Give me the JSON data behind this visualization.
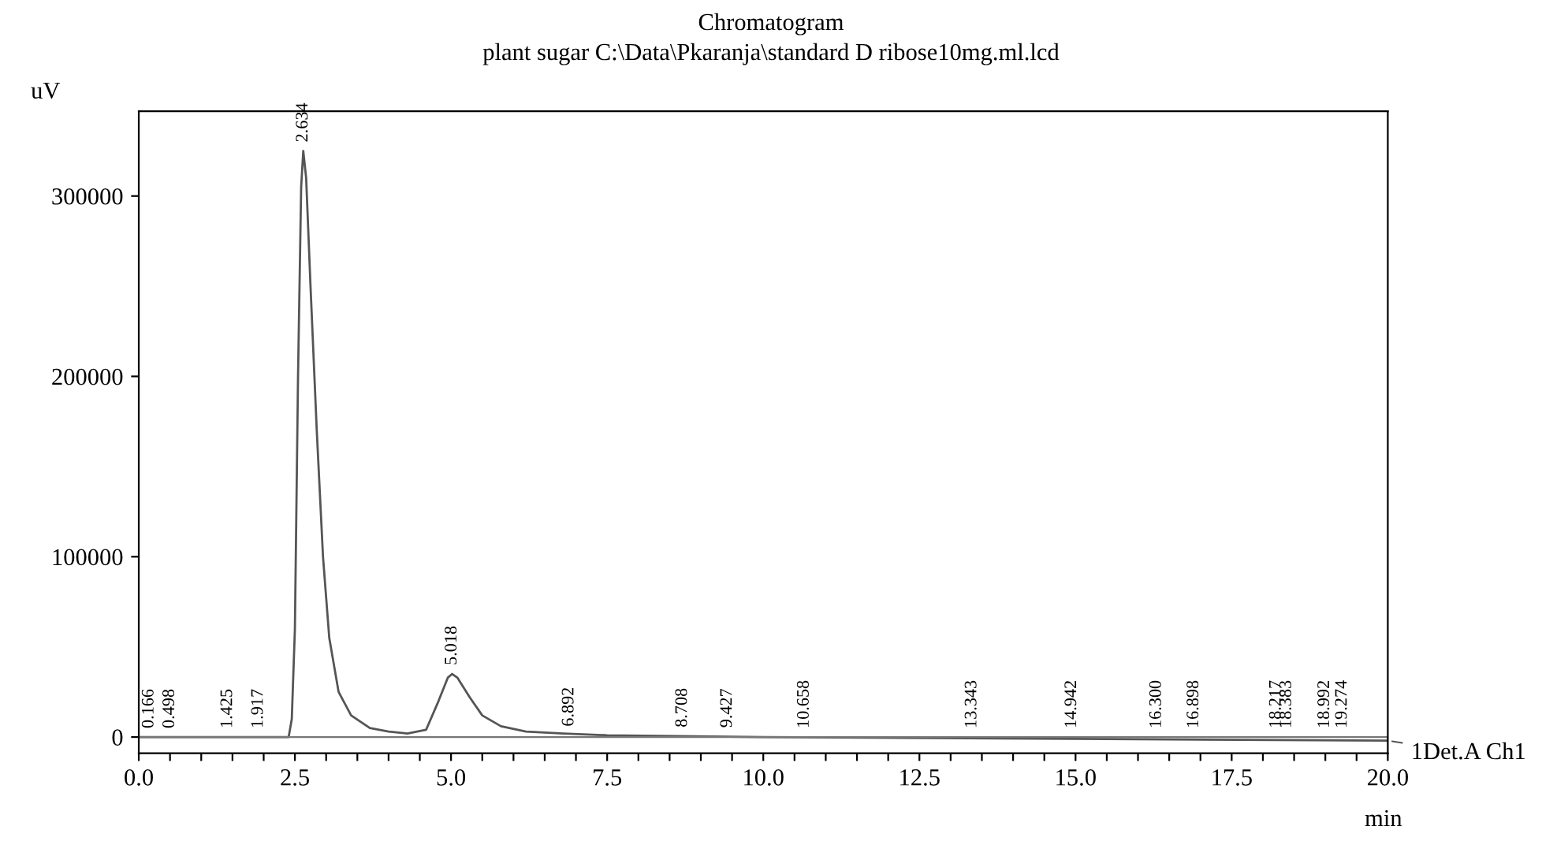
{
  "chart_data": {
    "type": "line",
    "title": "Chromatogram",
    "subtitle": "plant sugar C:\\Data\\Pkaranja\\standard D ribose10mg.ml.lcd",
    "xlabel": "min",
    "ylabel": "uV",
    "series": [
      {
        "name": "1Det.A Ch1",
        "color": "#555555",
        "x": [
          0,
          1.0,
          1.9,
          2.4,
          2.45,
          2.5,
          2.55,
          2.6,
          2.634,
          2.68,
          2.75,
          2.85,
          2.95,
          3.05,
          3.2,
          3.4,
          3.7,
          4.0,
          4.3,
          4.6,
          4.8,
          4.95,
          5.018,
          5.1,
          5.3,
          5.5,
          5.8,
          6.2,
          6.8,
          7.5,
          10,
          15,
          20
        ],
        "values": [
          0,
          0,
          0,
          0,
          10000,
          60000,
          200000,
          305000,
          325000,
          310000,
          250000,
          170000,
          100000,
          55000,
          25000,
          12000,
          5000,
          3000,
          2000,
          4000,
          20000,
          33000,
          35000,
          33000,
          22000,
          12000,
          6000,
          3000,
          2000,
          1000,
          0,
          -1000,
          -2000
        ]
      }
    ],
    "ref_lines": [
      {
        "axis": "y",
        "value": 0,
        "color": "#777777"
      }
    ],
    "annotations": [
      {
        "text": "0.166",
        "x": 0.166,
        "y": 0
      },
      {
        "text": "0.498",
        "x": 0.498,
        "y": 0
      },
      {
        "text": "1.425",
        "x": 1.425,
        "y": 0
      },
      {
        "text": "1.917",
        "x": 1.917,
        "y": 0
      },
      {
        "text": "2.634",
        "x": 2.634,
        "y": 325000
      },
      {
        "text": "5.018",
        "x": 5.018,
        "y": 35000
      },
      {
        "text": "6.892",
        "x": 6.892,
        "y": 1000
      },
      {
        "text": "8.708",
        "x": 8.708,
        "y": 500
      },
      {
        "text": "9.427",
        "x": 9.427,
        "y": 300
      },
      {
        "text": "10.658",
        "x": 10.658,
        "y": 0
      },
      {
        "text": "13.343",
        "x": 13.343,
        "y": 0
      },
      {
        "text": "14.942",
        "x": 14.942,
        "y": 0
      },
      {
        "text": "16.300",
        "x": 16.3,
        "y": 0
      },
      {
        "text": "16.898",
        "x": 16.898,
        "y": 0
      },
      {
        "text": "18.217",
        "x": 18.217,
        "y": 0
      },
      {
        "text": "18.383",
        "x": 18.383,
        "y": 0
      },
      {
        "text": "18.992",
        "x": 18.992,
        "y": 0
      },
      {
        "text": "19.274",
        "x": 19.274,
        "y": 0
      }
    ],
    "xlim": [
      0,
      20
    ],
    "ylim": [
      -9000,
      347000
    ],
    "xticks": [
      {
        "value": 0,
        "label": "0.0"
      },
      {
        "value": 0.5,
        "label": null
      },
      {
        "value": 1,
        "label": null
      },
      {
        "value": 1.5,
        "label": null
      },
      {
        "value": 2,
        "label": null
      },
      {
        "value": 2.5,
        "label": "2.5"
      },
      {
        "value": 3,
        "label": null
      },
      {
        "value": 3.5,
        "label": null
      },
      {
        "value": 4,
        "label": null
      },
      {
        "value": 4.5,
        "label": null
      },
      {
        "value": 5,
        "label": "5.0"
      },
      {
        "value": 5.5,
        "label": null
      },
      {
        "value": 6,
        "label": null
      },
      {
        "value": 6.5,
        "label": null
      },
      {
        "value": 7,
        "label": null
      },
      {
        "value": 7.5,
        "label": "7.5"
      },
      {
        "value": 8,
        "label": null
      },
      {
        "value": 8.5,
        "label": null
      },
      {
        "value": 9,
        "label": null
      },
      {
        "value": 9.5,
        "label": null
      },
      {
        "value": 10,
        "label": "10.0"
      },
      {
        "value": 10.5,
        "label": null
      },
      {
        "value": 11,
        "label": null
      },
      {
        "value": 11.5,
        "label": null
      },
      {
        "value": 12,
        "label": null
      },
      {
        "value": 12.5,
        "label": "12.5"
      },
      {
        "value": 13,
        "label": null
      },
      {
        "value": 13.5,
        "label": null
      },
      {
        "value": 14,
        "label": null
      },
      {
        "value": 14.5,
        "label": null
      },
      {
        "value": 15,
        "label": "15.0"
      },
      {
        "value": 15.5,
        "label": null
      },
      {
        "value": 16,
        "label": null
      },
      {
        "value": 16.5,
        "label": null
      },
      {
        "value": 17,
        "label": null
      },
      {
        "value": 17.5,
        "label": "17.5"
      },
      {
        "value": 18,
        "label": null
      },
      {
        "value": 18.5,
        "label": null
      },
      {
        "value": 19,
        "label": null
      },
      {
        "value": 19.5,
        "label": null
      },
      {
        "value": 20,
        "label": "20.0"
      }
    ],
    "yticks": [
      0,
      100000,
      200000,
      300000
    ],
    "grid": false,
    "legend": "right",
    "marker": "none",
    "line_style": "solid"
  }
}
